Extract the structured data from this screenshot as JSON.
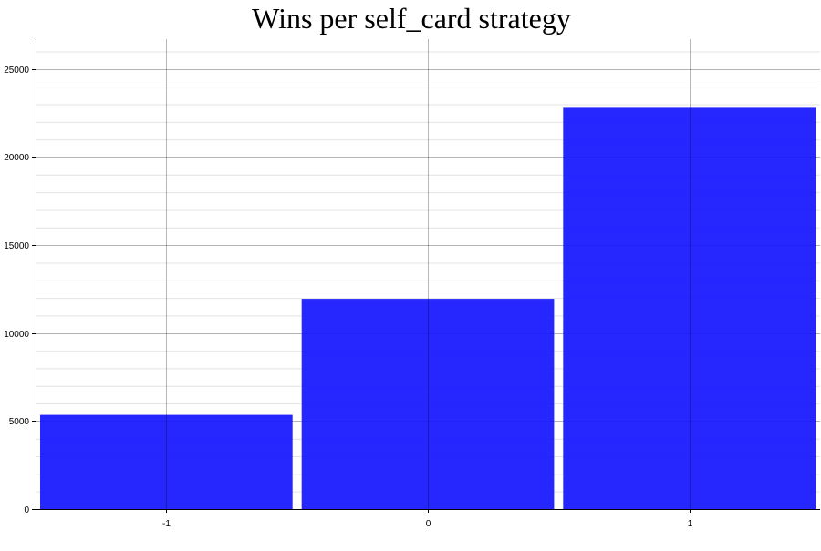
{
  "chart_data": {
    "type": "bar",
    "title": "Wins per self_card strategy",
    "xlabel": "",
    "ylabel": "",
    "categories": [
      "-1",
      "0",
      "1"
    ],
    "values": [
      5350,
      11950,
      22800
    ],
    "ylim": [
      0,
      26700
    ],
    "yticks": [
      0,
      5000,
      10000,
      15000,
      20000,
      25000
    ],
    "minor_grid_step": 1000,
    "grid": true,
    "legend": "none",
    "bar_color": "#1414ff"
  }
}
